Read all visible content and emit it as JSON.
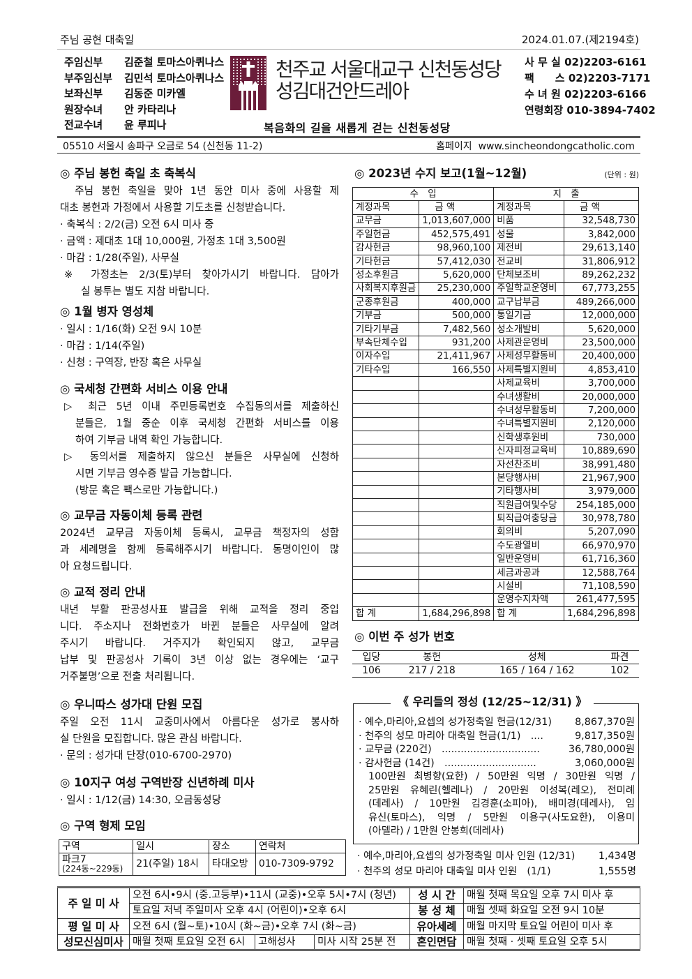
{
  "header": {
    "feast": "주님 공현 대축일",
    "date_issue": "2024.01.07.(제2194호)",
    "staff": [
      [
        "주임신부",
        "김준철 토마스아퀴나스"
      ],
      [
        "부주임신부",
        "김민석 토마스아퀴나스"
      ],
      [
        "보좌신부",
        "김동준 미카엘"
      ],
      [
        "원장수녀",
        "안 카타리나"
      ],
      [
        "전교수녀",
        "윤 루피나"
      ]
    ],
    "title_line1": "천주교 서울대교구 신천동성당",
    "title_line2": "성김대건안드레아",
    "slogan": "복음화의 길을 새롭게 걷는 신천동성당",
    "contacts": [
      "사 무 실 02)2203-6161",
      "팩　　스 02)2203-7171",
      "수 녀 원 02)2203-6166",
      "연령회장 010-3894-7402"
    ],
    "address": "05510 서울시 송파구 오금로 54 (신천동 11-2)",
    "homepage_label": "홈페이지",
    "homepage": "www.sincheondongcatholic.com",
    "logo_color": "#6b1d3a"
  },
  "left": {
    "s1": {
      "title": "◎ 주님 봉헌 축일 초 축복식",
      "lines": [
        "　주님 봉헌 축일을 맞아 1년 동안 미사 중에 사용할 제",
        "대초 봉헌과 가정에서 사용할 기도초를 신청받습니다."
      ],
      "bullets": [
        "· 축복식 : 2/2(금) 오전 6시 미사 중",
        "· 금액 : 제대초 1대 10,000원, 가정초 1대 3,500원",
        "· 마감 : 1/28(주일), 사무실"
      ],
      "note": [
        "※ 가정초는 2/3(토)부터 찾아가시기 바랍니다. 담아가",
        "실 봉투는 별도 지참 바랍니다."
      ]
    },
    "s2": {
      "title": "◎ 1월 병자 영성체",
      "bullets": [
        "· 일시 : 1/16(화) 오전 9시 10분",
        "· 마감 : 1/14(주일)",
        "· 신청 : 구역장, 반장 혹은 사무실"
      ]
    },
    "s3": {
      "title": "◎ 국세청 간편화 서비스 이용 안내",
      "p1": [
        "▷ 최근 5년 이내 주민등록번호 수집동의서를 제출하신",
        "분들은, 1월 중순 이후 국세청 간편화 서비스를 이용",
        "하여 기부금 내역 확인 가능합니다."
      ],
      "p2": [
        "▷ 동의서를 제출하지 않으신 분들은 사무실에 신청하",
        "시면 기부금 영수증 발급 가능합니다.",
        "(방문 혹은 팩스로만 가능합니다.)"
      ]
    },
    "s4": {
      "title": "◎ 교무금 자동이체 등록 관련",
      "lines": [
        " 2024년 교무금 자동이체 등록시, 교무금 책정자의 성함",
        "과 세례명을 함께 등록해주시기 바랍니다. 동명이인이 많",
        "아 요청드립니다."
      ]
    },
    "s5": {
      "title": "◎ 교적 정리 안내",
      "lines": [
        " 내년 부활 판공성사표 발급을 위해 교적을 정리 중입",
        "니다. 주소지나 전화번호가 바뀐 분들은 사무실에 알려",
        "주시기 바랍니다. 거주지가 확인되지 않고, 교무금",
        "납부 및 판공성사 기록이 3년 이상 없는 경우에는 ‘교구",
        "거주불명’으로 전출 처리됩니다."
      ]
    },
    "s6": {
      "title": "◎ 우니따스 성가대 단원 모집",
      "lines": [
        " 주일 오전 11시 교중미사에서 아름다운 성가로 봉사하",
        "실 단원을 모집합니다. 많은 관심 바랍니다."
      ],
      "bullets": [
        "· 문의 : 성가대 단장(010-6700-2970)"
      ]
    },
    "s7": {
      "title": "◎ 10지구 여성 구역반장 신년하례 미사",
      "bullets": [
        "· 일시 : 1/12(금) 14:30, 오금동성당"
      ]
    },
    "s8": {
      "title": "◎ 구역 형제 모임",
      "headers": [
        "구역",
        "일시",
        "장소",
        "연락처"
      ],
      "row": {
        "area": "파크7",
        "area_sub": "(224동~229동)",
        "when": "21(주일) 18시",
        "place": "타대오방",
        "contact": "010-7309-9792"
      }
    }
  },
  "finance": {
    "title": "◎ 2023년 수지 보고(1월~12월)",
    "unit": "(단위 : 원)",
    "income_label": "수　입",
    "expense_label": "지　출",
    "col_account": "계정과목",
    "col_amount": "금 액",
    "income": [
      [
        "교무금",
        "1,013,607,000"
      ],
      [
        "주일헌금",
        "452,575,491"
      ],
      [
        "감사헌금",
        "98,960,100"
      ],
      [
        "기타헌금",
        "57,412,030"
      ],
      [
        "성소후원금",
        "5,620,000"
      ],
      [
        "사회복지후원금",
        "25,230,000"
      ],
      [
        "군종후원금",
        "400,000"
      ],
      [
        "기부금",
        "500,000"
      ],
      [
        "기타기부금",
        "7,482,560"
      ],
      [
        "부속단체수입",
        "931,200"
      ],
      [
        "이자수입",
        "21,411,967"
      ],
      [
        "기타수입",
        "166,550"
      ]
    ],
    "expense": [
      [
        "비품",
        "32,548,730"
      ],
      [
        "성물",
        "3,842,000"
      ],
      [
        "제전비",
        "29,613,140"
      ],
      [
        "전교비",
        "31,806,912"
      ],
      [
        "단체보조비",
        "89,262,232"
      ],
      [
        "주일학교운영비",
        "67,773,255"
      ],
      [
        "교구납부금",
        "489,266,000"
      ],
      [
        "통일기금",
        "12,000,000"
      ],
      [
        "성소개발비",
        "5,620,000"
      ],
      [
        "사제관운영비",
        "23,500,000"
      ],
      [
        "사제성무활동비",
        "20,400,000"
      ],
      [
        "사제특별지원비",
        "4,853,410"
      ],
      [
        "사제교육비",
        "3,700,000"
      ],
      [
        "수녀생활비",
        "20,000,000"
      ],
      [
        "수녀성무활동비",
        "7,200,000"
      ],
      [
        "수녀특별지원비",
        "2,120,000"
      ],
      [
        "신학생후원비",
        "730,000"
      ],
      [
        "신자피정교육비",
        "10,889,690"
      ],
      [
        "자선찬조비",
        "38,991,480"
      ],
      [
        "본당행사비",
        "21,967,900"
      ],
      [
        "기타행사비",
        "3,979,000"
      ],
      [
        "직원급여및수당",
        "254,185,000"
      ],
      [
        "퇴직급여충당금",
        "30,978,780"
      ],
      [
        "회의비",
        "5,207,090"
      ],
      [
        "수도광열비",
        "66,970,970"
      ],
      [
        "일반운영비",
        "61,716,360"
      ],
      [
        "세금과공과",
        "12,588,764"
      ],
      [
        "시설비",
        "71,108,590"
      ],
      [
        "운영수지차액",
        "261,477,595"
      ]
    ],
    "total_label": "합 계",
    "income_total": "1,684,296,898",
    "expense_total": "1,684,296,898"
  },
  "hymns": {
    "title": "◎ 이번 주 성가 번호",
    "headers": [
      "입당",
      "봉헌",
      "성체",
      "파견"
    ],
    "values": [
      "106",
      "217 / 218",
      "165 / 164 / 162",
      "102"
    ]
  },
  "offering": {
    "title": "《 우리들의 정성 (12/25~12/31) 》",
    "items": [
      [
        "· 예수,마리아,요셉의 성가정축일 헌금(12/31)",
        "8,867,370원"
      ],
      [
        "· 천주의 성모 마리아 대축일 헌금(1/1)　....",
        "9,817,350원"
      ],
      [
        "· 교무금 (220건)　...............................",
        "36,780,000원"
      ],
      [
        "· 감사헌금 (14건)　.............................",
        "3,060,000원"
      ]
    ],
    "donors": [
      "100만원 최병향(요한) / 50만원 익명 / 30만원 익명 /",
      "25만원 유혜린(헬레나) / 20만원 이성복(레오), 전미례",
      "(데레사) / 10만원 김경훈(소피아), 배미경(데레사), 임",
      "유신(토마스), 익명 / 5만원 이용구(사도요한), 이용미",
      "(아델라) / 1만원 안봉희(데레사)"
    ],
    "attendance": [
      [
        "· 예수,마리아,요셉의 성가정축일 미사 인원 (12/31)",
        "1,434명"
      ],
      [
        "· 천주의 성모 마리아 대축일 미사 인원　(1/1)",
        "1,555명"
      ]
    ]
  },
  "mass": {
    "sunday_label": "주 일 미 사",
    "sunday1": "오전 6시•9시 (중.고등부)•11시 (교중)•오후 5시•7시 (청년)",
    "sunday2": "토요일 저녁 주일미사 오후 4시 (어린이)•오후 6시",
    "weekday_label": "평 일 미 사",
    "weekday": "오전 6시 (월~토)•10시 (화~금)•오후 7시 (화~금)",
    "heart_label": "성모신심미사",
    "heart": "매월 첫째 토요일 오전 6시",
    "confession_label": "고해성사",
    "confession": "미사 시작 25분 전",
    "holyhour_label": "성 시 간",
    "holyhour": "매월 첫째 목요일 오후 7시 미사 후",
    "sick_label": "봉 성 체",
    "sick": "매월 셋째 화요일 오전 9시 10분",
    "baptism_label": "유아세례",
    "baptism": "매월 마지막 토요일 어린이 미사 후",
    "marriage_label": "혼인면담",
    "marriage": "매월 첫째 · 셋째 토요일 오후 5시"
  }
}
